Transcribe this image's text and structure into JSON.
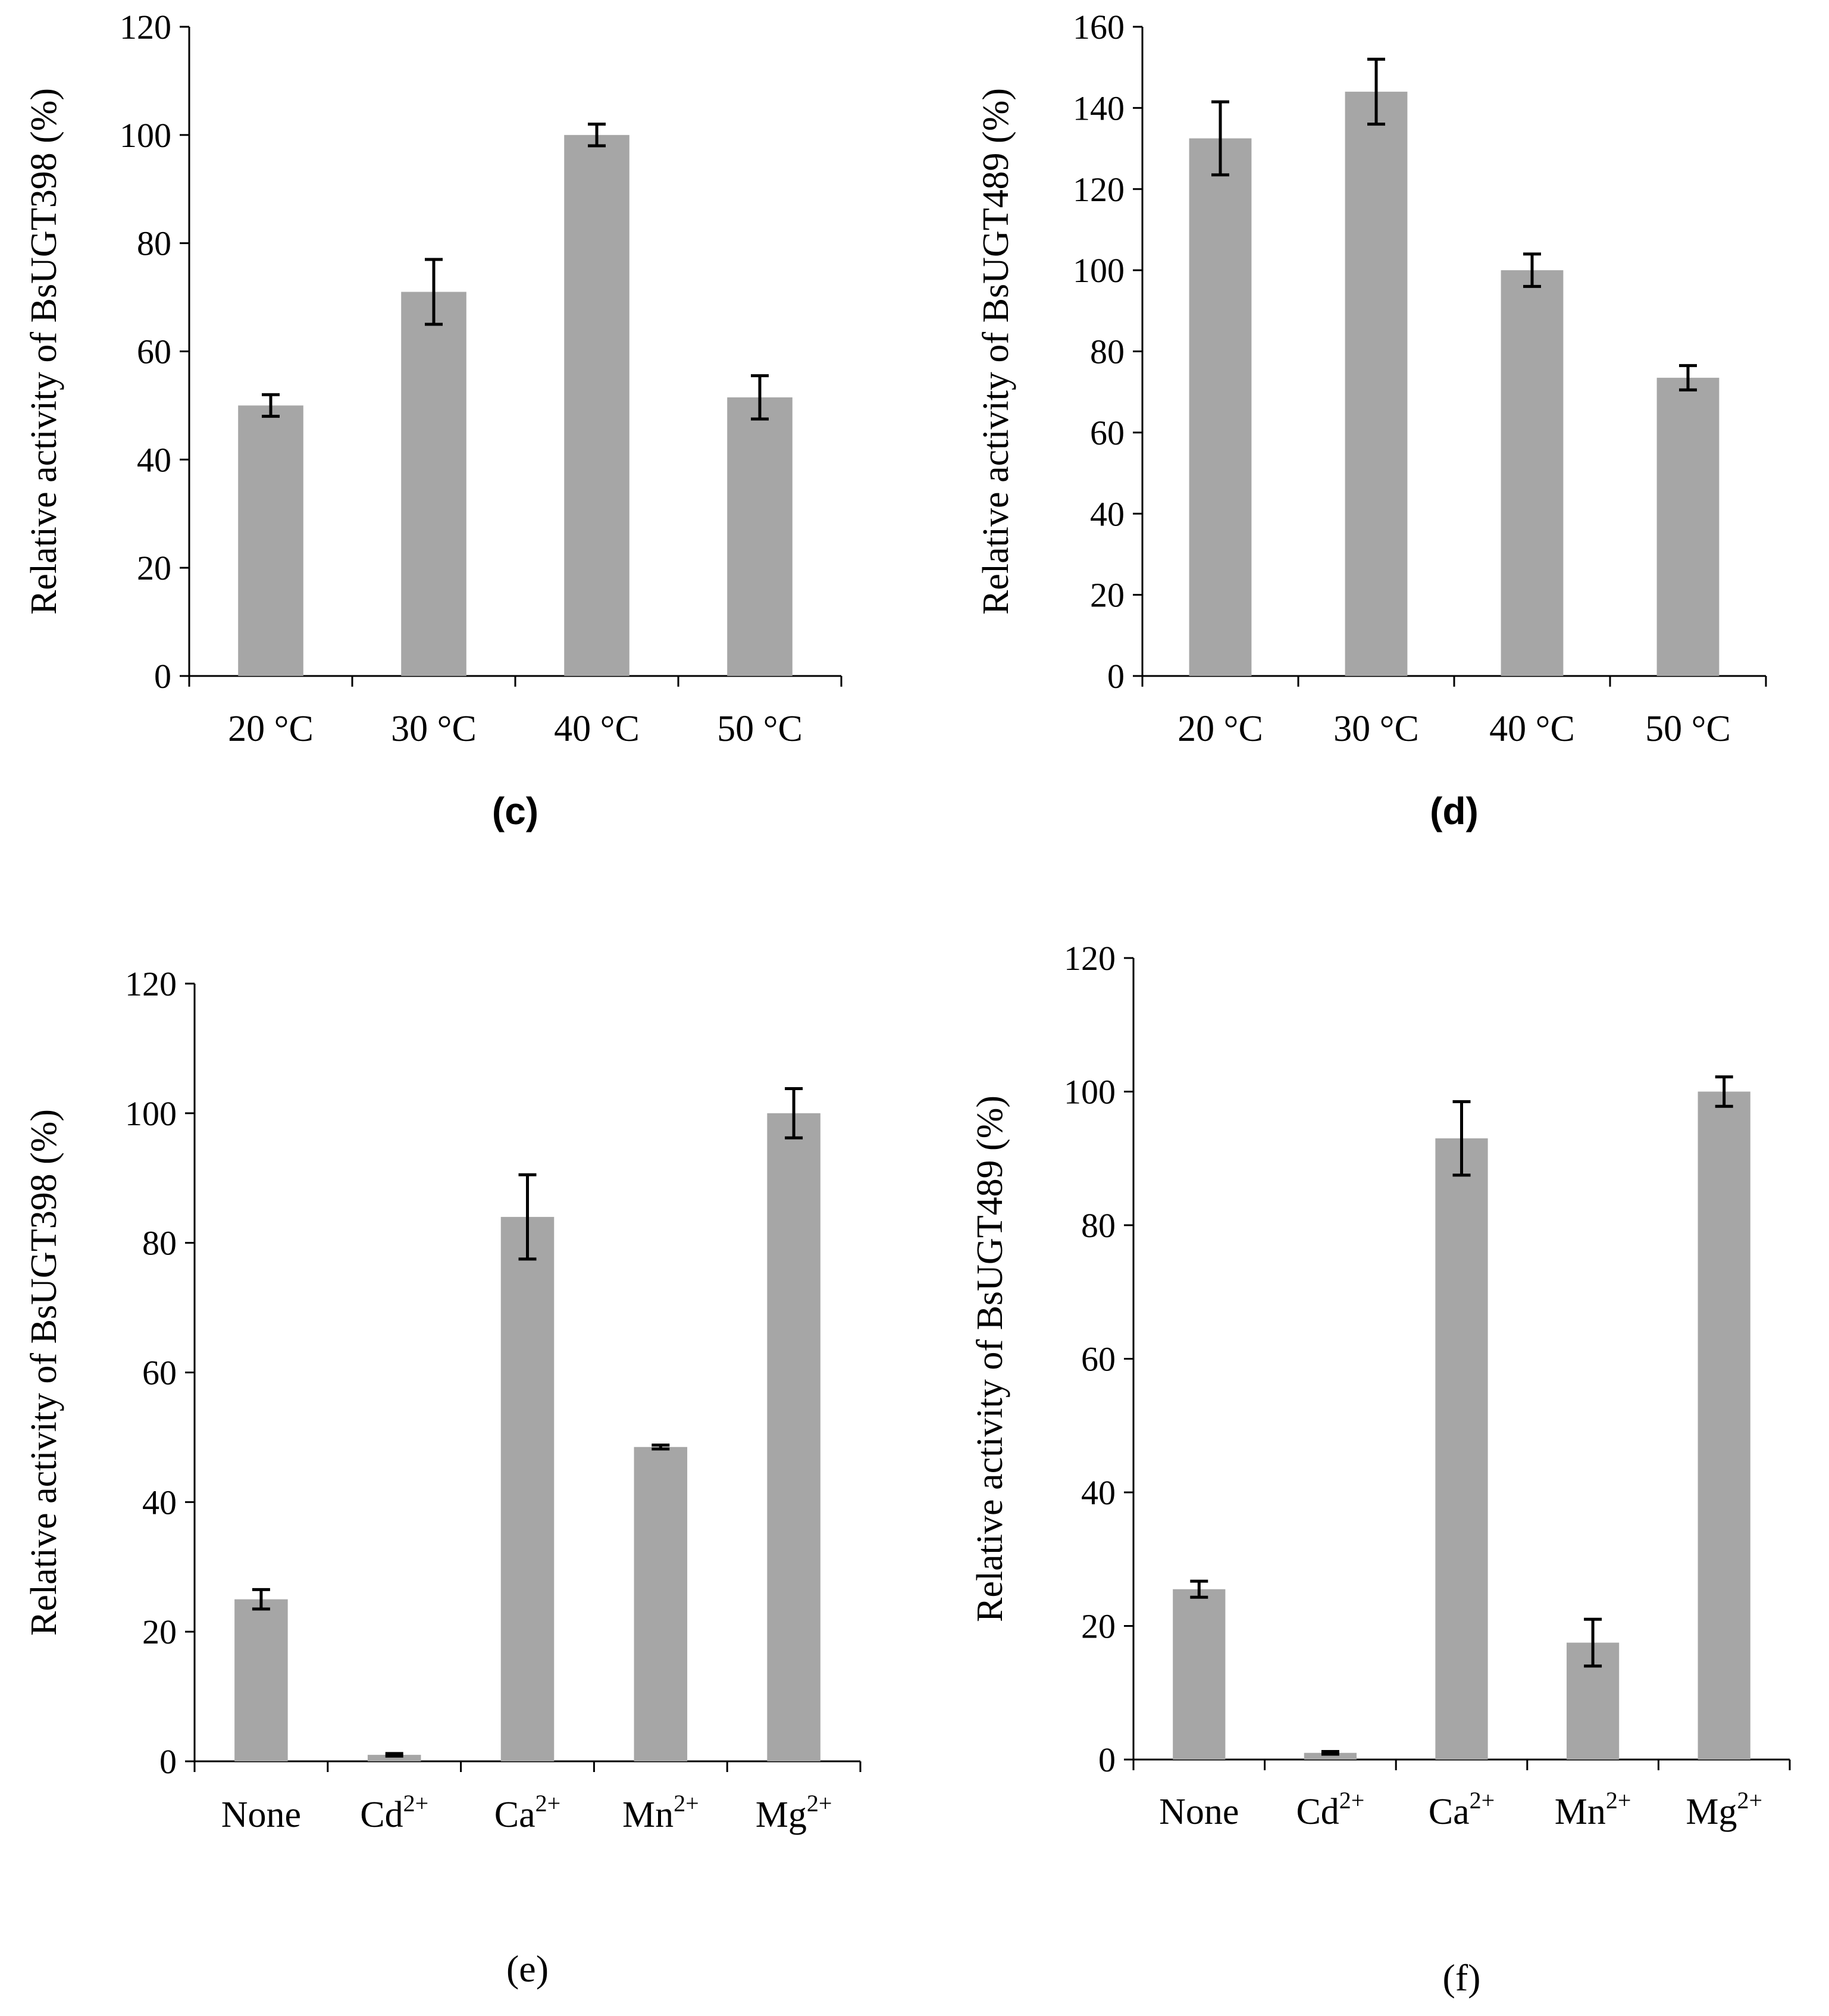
{
  "colors": {
    "bar": "#a6a6a6",
    "axis": "#000000",
    "error_bar": "#000000"
  },
  "chart_data": [
    {
      "id": "c",
      "type": "bar",
      "panel_label": "(c)",
      "ylabel": "Relative activity of BsUGT398 (%)",
      "categories": [
        "20 °C",
        "30 °C",
        "40 °C",
        "50 °C"
      ],
      "values": [
        50,
        71,
        100,
        51.5
      ],
      "errors": [
        2,
        6,
        2,
        4
      ],
      "ylim": [
        0,
        120
      ],
      "yticks": [
        0,
        20,
        40,
        60,
        80,
        100,
        120
      ],
      "grid": false
    },
    {
      "id": "d",
      "type": "bar",
      "panel_label": "(d)",
      "ylabel": "Relative activity of BsUGT489 (%)",
      "categories": [
        "20 °C",
        "30 °C",
        "40 °C",
        "50 °C"
      ],
      "values": [
        132.5,
        144,
        100,
        73.5
      ],
      "errors": [
        9,
        8,
        4,
        3
      ],
      "ylim": [
        0,
        160
      ],
      "yticks": [
        0,
        20,
        40,
        60,
        80,
        100,
        120,
        140,
        160
      ],
      "grid": false
    },
    {
      "id": "e",
      "type": "bar",
      "panel_label": "(e)",
      "ylabel": "Relative activity of BsUGT398 (%)",
      "categories": [
        {
          "base": "None",
          "sup": ""
        },
        {
          "base": "Cd",
          "sup": "2+"
        },
        {
          "base": "Ca",
          "sup": "2+"
        },
        {
          "base": "Mn",
          "sup": "2+"
        },
        {
          "base": "Mg",
          "sup": "2+"
        }
      ],
      "values": [
        25,
        1,
        84,
        48.5,
        100
      ],
      "errors": [
        1.5,
        0.2,
        6.5,
        0.3,
        3.8
      ],
      "ylim": [
        0,
        120
      ],
      "yticks": [
        0,
        20,
        40,
        60,
        80,
        100,
        120
      ],
      "grid": false
    },
    {
      "id": "f",
      "type": "bar",
      "panel_label": "(f)",
      "ylabel": "Relative activity of BsUGT489 (%)",
      "categories": [
        {
          "base": "None",
          "sup": ""
        },
        {
          "base": "Cd",
          "sup": "2+"
        },
        {
          "base": "Ca",
          "sup": "2+"
        },
        {
          "base": "Mn",
          "sup": "2+"
        },
        {
          "base": "Mg",
          "sup": "2+"
        }
      ],
      "values": [
        25.5,
        1,
        93,
        17.5,
        100
      ],
      "errors": [
        1.2,
        0.2,
        5.5,
        3.5,
        2.2
      ],
      "ylim": [
        0,
        120
      ],
      "yticks": [
        0,
        20,
        40,
        60,
        80,
        100,
        120
      ],
      "grid": false
    }
  ]
}
